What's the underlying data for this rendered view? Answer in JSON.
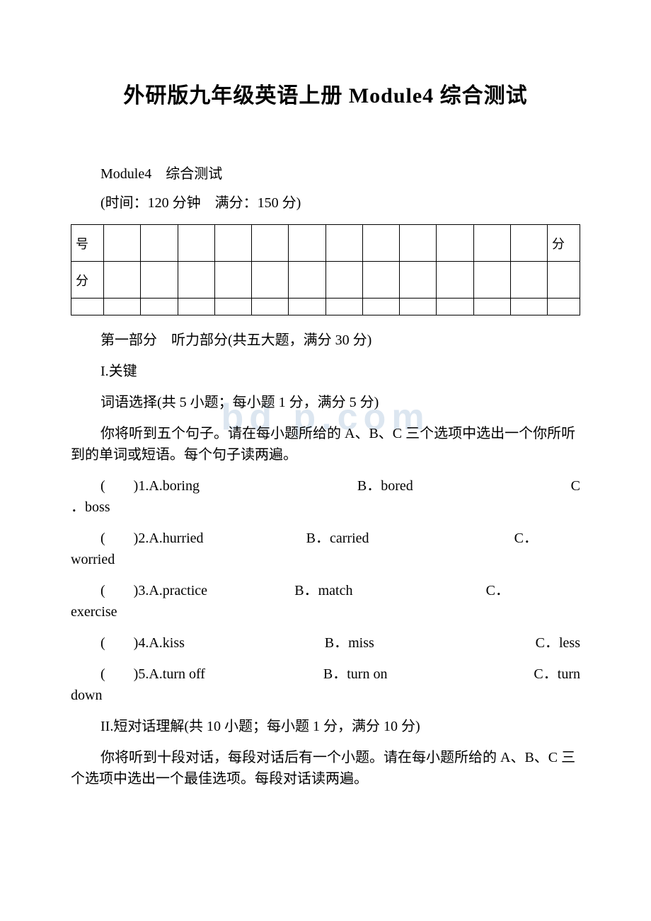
{
  "title": "外研版九年级英语上册 Module4 综合测试",
  "subtitle": "Module4　综合测试",
  "info": "(时间：120 分钟　满分：150 分)",
  "table": {
    "row1_label": "号",
    "row1_last": "分",
    "row2_label": "分"
  },
  "part1_heading": "第一部分　听力部分(共五大题，满分 30 分)",
  "section1_line1": "I.关键",
  "section1_line2": "词语选择(共 5 小题；每小题 1 分，满分 5 分)",
  "section1_desc": "你将听到五个句子。请在每小题所给的 A、B、C 三个选项中选出一个你所听到的单词或短语。每个句子读两遍。",
  "questions1": [
    {
      "num": "1",
      "a": "A.boring",
      "b": "B．bored",
      "c": "C",
      "wrap": "．boss"
    },
    {
      "num": "2",
      "a": "A.hurried",
      "b": "B．carried",
      "c": "C．",
      "wrap": "worried"
    },
    {
      "num": "3",
      "a": "A.practice",
      "b": "B．match",
      "c": "C．",
      "wrap": "exercise"
    },
    {
      "num": "4",
      "a": "A.kiss",
      "b": "B．miss",
      "c": "C．less",
      "wrap": ""
    },
    {
      "num": "5",
      "a": "A.turn off",
      "b": "B．turn on",
      "c": "C．turn",
      "wrap": "down"
    }
  ],
  "section2_heading": "II.短对话理解(共 10 小题；每小题 1 分，满分 10 分)",
  "section2_desc": "你将听到十段对话，每段对话后有一个小题。请在每小题所给的 A、B、C 三个选项中选出一个最佳选项。每段对话读两遍。",
  "watermark": "bd  p.com",
  "paren_open": "(",
  "paren_close": ")"
}
